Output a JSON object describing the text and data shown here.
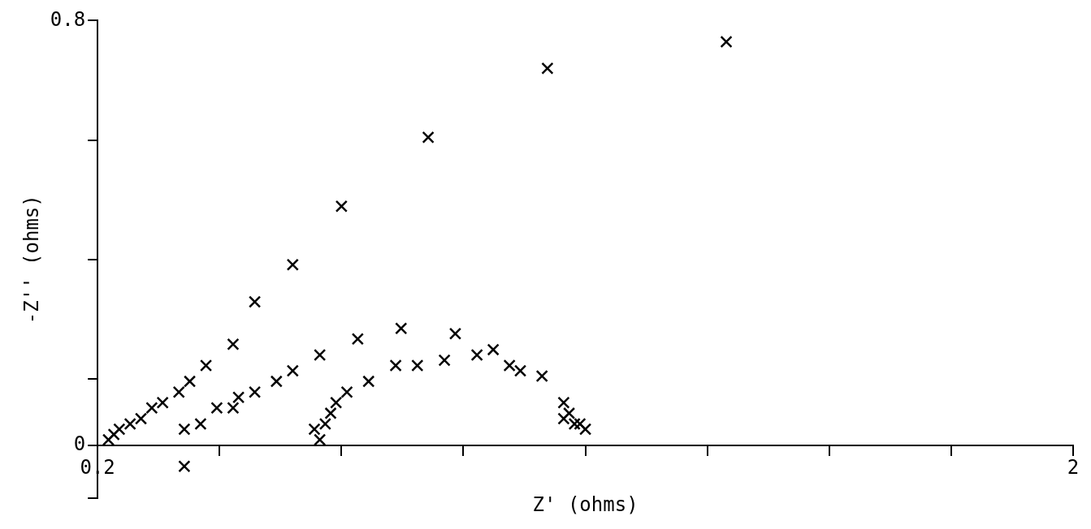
{
  "chart_data": {
    "type": "scatter",
    "xlabel": "Z' (ohms)",
    "ylabel": "-Z'' (ohms)",
    "marker": "cross",
    "xlim": [
      0.2,
      2
    ],
    "ylim": [
      -0.1,
      0.8
    ],
    "xticks": [
      0.2,
      {
        "value": 0.425,
        "label": null
      },
      {
        "value": 0.65,
        "label": null
      },
      {
        "value": 0.875,
        "label": null
      },
      {
        "value": 1.1,
        "label": null
      },
      {
        "value": 1.325,
        "label": null
      },
      {
        "value": 1.55,
        "label": null
      },
      {
        "value": 1.775,
        "label": null
      },
      2
    ],
    "yticks": [
      {
        "value": -0.1,
        "label": null
      },
      0,
      {
        "value": 0.125,
        "label": null
      },
      {
        "value": 0.35,
        "label": null
      },
      {
        "value": 0.575,
        "label": null
      },
      0.8
    ],
    "series": [
      {
        "color": "#000000",
        "x": [
          0.22,
          0.23,
          0.24,
          0.26,
          0.28,
          0.3,
          0.32,
          0.35,
          0.37,
          0.4,
          0.45,
          0.49,
          0.56,
          0.65,
          0.81,
          1.03,
          1.36
        ],
        "values": [
          0.01,
          0.02,
          0.03,
          0.04,
          0.05,
          0.07,
          0.08,
          0.1,
          0.12,
          0.15,
          0.19,
          0.27,
          0.34,
          0.45,
          0.58,
          0.71,
          0.76
        ]
      },
      {
        "color": "#000000",
        "x": [
          0.36,
          0.36,
          0.39,
          0.42,
          0.45,
          0.46,
          0.49,
          0.53,
          0.56,
          0.61,
          0.68,
          0.76,
          0.86,
          0.93,
          0.98,
          1.06,
          1.07,
          1.09
        ],
        "values": [
          -0.04,
          0.03,
          0.04,
          0.07,
          0.07,
          0.09,
          0.1,
          0.12,
          0.14,
          0.17,
          0.2,
          0.22,
          0.21,
          0.18,
          0.14,
          0.08,
          0.06,
          0.04
        ]
      },
      {
        "color": "#000000",
        "x": [
          0.61,
          0.6,
          0.62,
          0.63,
          0.64,
          0.66,
          0.7,
          0.75,
          0.79,
          0.84,
          0.9,
          0.96,
          1.02,
          1.06,
          1.08,
          1.1
        ],
        "values": [
          0.01,
          0.03,
          0.04,
          0.06,
          0.08,
          0.1,
          0.12,
          0.15,
          0.15,
          0.16,
          0.17,
          0.15,
          0.13,
          0.05,
          0.04,
          0.03
        ]
      }
    ]
  }
}
